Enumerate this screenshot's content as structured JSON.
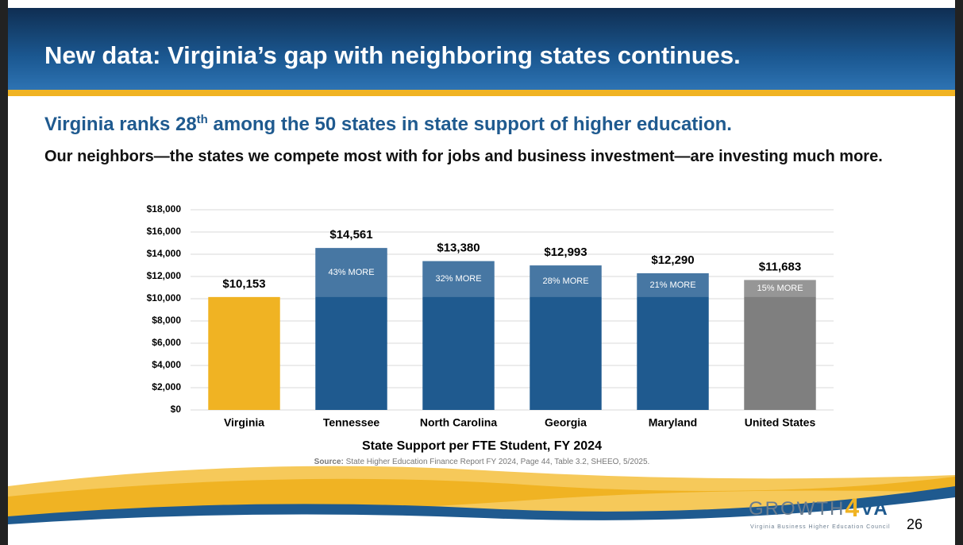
{
  "header": {
    "title": "New data: Virginia’s gap with neighboring states continues."
  },
  "subtitle": {
    "part1": "Virginia ranks 28",
    "sup": "th",
    "part2": " among the 50 states in state support of higher education."
  },
  "lead": "Our neighbors—the states we compete most with for jobs and business investment—are investing much more.",
  "chart_data": {
    "type": "bar",
    "categories": [
      "Virginia",
      "Tennessee",
      "North Carolina",
      "Georgia",
      "Maryland",
      "United States"
    ],
    "values": [
      10153,
      14561,
      13380,
      12993,
      12290,
      11683
    ],
    "value_labels": [
      "$10,153",
      "$14,561",
      "$13,380",
      "$12,993",
      "$12,290",
      "$11,683"
    ],
    "bar_notes": [
      null,
      "43% MORE",
      "32% MORE",
      "28% MORE",
      "21% MORE",
      "15% MORE"
    ],
    "colors": [
      "#f0b323",
      "#1f5a8f",
      "#1f5a8f",
      "#1f5a8f",
      "#1f5a8f",
      "#7f7f7f"
    ],
    "x_label": "State Support per FTE Student, FY 2024",
    "ylim": [
      0,
      18000
    ],
    "yticks": [
      {
        "value": 0,
        "label": "$0"
      },
      {
        "value": 2000,
        "label": "$2,000"
      },
      {
        "value": 4000,
        "label": "$4,000"
      },
      {
        "value": 6000,
        "label": "$6,000"
      },
      {
        "value": 8000,
        "label": "$8,000"
      },
      {
        "value": 10000,
        "label": "$10,000"
      },
      {
        "value": 12000,
        "label": "$12,000"
      },
      {
        "value": 14000,
        "label": "$14,000"
      },
      {
        "value": 16000,
        "label": "$16,000"
      },
      {
        "value": 18000,
        "label": "$18,000"
      }
    ],
    "grid": true
  },
  "source": {
    "label": "Source:",
    "text": " State Higher Education Finance Report FY 2024, Page 44, Table 3.2, SHEEO, 5/2025."
  },
  "logo": {
    "part1": "GROWTH",
    "part2": "4",
    "part3": "VA",
    "tagline": "Virginia Business Higher Education Council"
  },
  "page_number": "26"
}
